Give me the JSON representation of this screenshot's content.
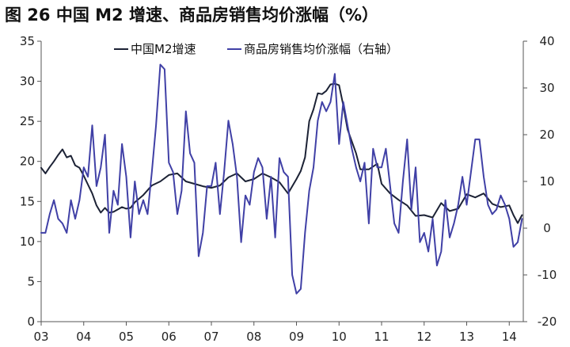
{
  "title": "图 26 中国 M2 增速、商品房销售均价涨幅（%）",
  "colors": {
    "m2": "#1c2235",
    "price": "#4040a6",
    "axis": "#555555",
    "background": "#ffffff"
  },
  "chart_data": {
    "type": "line",
    "title": "图 26 中国 M2 增速、商品房销售均价涨幅（%）",
    "x_tick_labels": [
      "03",
      "04",
      "05",
      "06",
      "07",
      "08",
      "09",
      "10",
      "11",
      "12",
      "13",
      "14"
    ],
    "x_tick_values": [
      2003,
      2004,
      2005,
      2006,
      2007,
      2008,
      2009,
      2010,
      2011,
      2012,
      2013,
      2014
    ],
    "xlim": [
      2003,
      2014.33
    ],
    "left_axis": {
      "ylim": [
        0,
        35
      ],
      "ticks": [
        0,
        5,
        10,
        15,
        20,
        25,
        30,
        35
      ]
    },
    "right_axis": {
      "ylim": [
        -20,
        40
      ],
      "ticks": [
        -20,
        -10,
        0,
        10,
        20,
        30,
        40
      ]
    },
    "grid": false,
    "legend_position": "top",
    "series": [
      {
        "name": "中国M2增速",
        "axis": "left",
        "color": "#1c2235",
        "x": [
          2003.0,
          2003.1,
          2003.2,
          2003.3,
          2003.4,
          2003.5,
          2003.6,
          2003.7,
          2003.8,
          2003.9,
          2004.0,
          2004.1,
          2004.2,
          2004.3,
          2004.4,
          2004.5,
          2004.6,
          2004.7,
          2004.8,
          2004.9,
          2005.0,
          2005.1,
          2005.2,
          2005.4,
          2005.6,
          2005.8,
          2006.0,
          2006.2,
          2006.4,
          2006.6,
          2006.8,
          2007.0,
          2007.2,
          2007.4,
          2007.6,
          2007.8,
          2008.0,
          2008.2,
          2008.4,
          2008.6,
          2008.8,
          2009.0,
          2009.1,
          2009.2,
          2009.3,
          2009.4,
          2009.5,
          2009.6,
          2009.7,
          2009.8,
          2009.9,
          2010.0,
          2010.1,
          2010.2,
          2010.3,
          2010.4,
          2010.5,
          2010.7,
          2010.9,
          2011.0,
          2011.2,
          2011.4,
          2011.6,
          2011.8,
          2012.0,
          2012.2,
          2012.4,
          2012.6,
          2012.8,
          2013.0,
          2013.2,
          2013.4,
          2013.6,
          2013.8,
          2014.0,
          2014.1,
          2014.2,
          2014.3
        ],
        "values": [
          19.2,
          18.5,
          19.3,
          20.0,
          20.8,
          21.5,
          20.5,
          20.7,
          19.5,
          19.2,
          18.2,
          17.1,
          16.0,
          14.5,
          13.6,
          14.2,
          13.6,
          13.7,
          14.0,
          14.3,
          14.1,
          14.2,
          14.9,
          15.8,
          17.0,
          17.5,
          18.3,
          18.5,
          17.5,
          17.2,
          16.9,
          16.7,
          17.0,
          18.0,
          18.5,
          17.5,
          17.8,
          18.5,
          18.0,
          17.4,
          16.0,
          17.8,
          18.8,
          20.5,
          25.0,
          26.5,
          28.5,
          28.4,
          28.8,
          29.6,
          29.7,
          29.5,
          27.0,
          24.0,
          22.5,
          21.0,
          19.0,
          19.0,
          19.7,
          17.2,
          16.0,
          15.2,
          14.5,
          13.2,
          13.3,
          13.0,
          14.8,
          13.8,
          14.1,
          15.9,
          15.5,
          16.0,
          14.7,
          14.3,
          14.5,
          13.3,
          12.3,
          13.3
        ]
      },
      {
        "name": "商品房销售均价涨幅（右轴）",
        "axis": "right",
        "color": "#4040a6",
        "x": [
          2003.0,
          2003.1,
          2003.2,
          2003.3,
          2003.4,
          2003.5,
          2003.6,
          2003.7,
          2003.8,
          2003.9,
          2004.0,
          2004.1,
          2004.2,
          2004.3,
          2004.4,
          2004.5,
          2004.6,
          2004.7,
          2004.8,
          2004.9,
          2005.0,
          2005.1,
          2005.2,
          2005.3,
          2005.4,
          2005.5,
          2005.6,
          2005.7,
          2005.8,
          2005.9,
          2006.0,
          2006.1,
          2006.2,
          2006.3,
          2006.4,
          2006.5,
          2006.6,
          2006.7,
          2006.8,
          2006.9,
          2007.0,
          2007.1,
          2007.2,
          2007.3,
          2007.4,
          2007.5,
          2007.6,
          2007.7,
          2007.8,
          2007.9,
          2008.0,
          2008.1,
          2008.2,
          2008.3,
          2008.4,
          2008.5,
          2008.6,
          2008.7,
          2008.8,
          2008.9,
          2009.0,
          2009.1,
          2009.2,
          2009.3,
          2009.4,
          2009.5,
          2009.6,
          2009.7,
          2009.8,
          2009.9,
          2010.0,
          2010.1,
          2010.2,
          2010.3,
          2010.4,
          2010.5,
          2010.6,
          2010.7,
          2010.8,
          2010.9,
          2011.0,
          2011.1,
          2011.2,
          2011.3,
          2011.4,
          2011.5,
          2011.6,
          2011.7,
          2011.8,
          2011.9,
          2012.0,
          2012.1,
          2012.2,
          2012.3,
          2012.4,
          2012.5,
          2012.6,
          2012.7,
          2012.8,
          2012.9,
          2013.0,
          2013.1,
          2013.2,
          2013.3,
          2013.4,
          2013.5,
          2013.6,
          2013.7,
          2013.8,
          2013.9,
          2014.0,
          2014.1,
          2014.2,
          2014.3
        ],
        "values": [
          -1,
          -1,
          3,
          6,
          2,
          1,
          -1,
          6,
          2,
          6,
          13,
          11,
          22,
          9,
          13,
          20,
          -1,
          8,
          5,
          18,
          11,
          -2,
          10,
          3,
          6,
          3,
          12,
          22,
          35,
          34,
          14,
          12,
          3,
          8,
          25,
          16,
          14,
          -6,
          -1,
          9,
          9,
          14,
          3,
          12,
          23,
          18,
          11,
          -3,
          7,
          5,
          12,
          15,
          13,
          2,
          11,
          -2,
          15,
          12,
          11,
          -10,
          -14,
          -13,
          -1,
          8,
          13,
          23,
          27,
          25,
          27,
          33,
          18,
          27,
          22,
          17,
          13,
          10,
          14,
          1,
          17,
          13,
          13,
          17,
          9,
          1,
          -1,
          10,
          19,
          4,
          13,
          -3,
          -1,
          -5,
          2,
          -8,
          -5,
          6,
          -2,
          1,
          5,
          11,
          5,
          12,
          19,
          19,
          11,
          5,
          3,
          4,
          7,
          5,
          2,
          -4,
          -3,
          2
        ],
        "note": ""
      }
    ]
  }
}
